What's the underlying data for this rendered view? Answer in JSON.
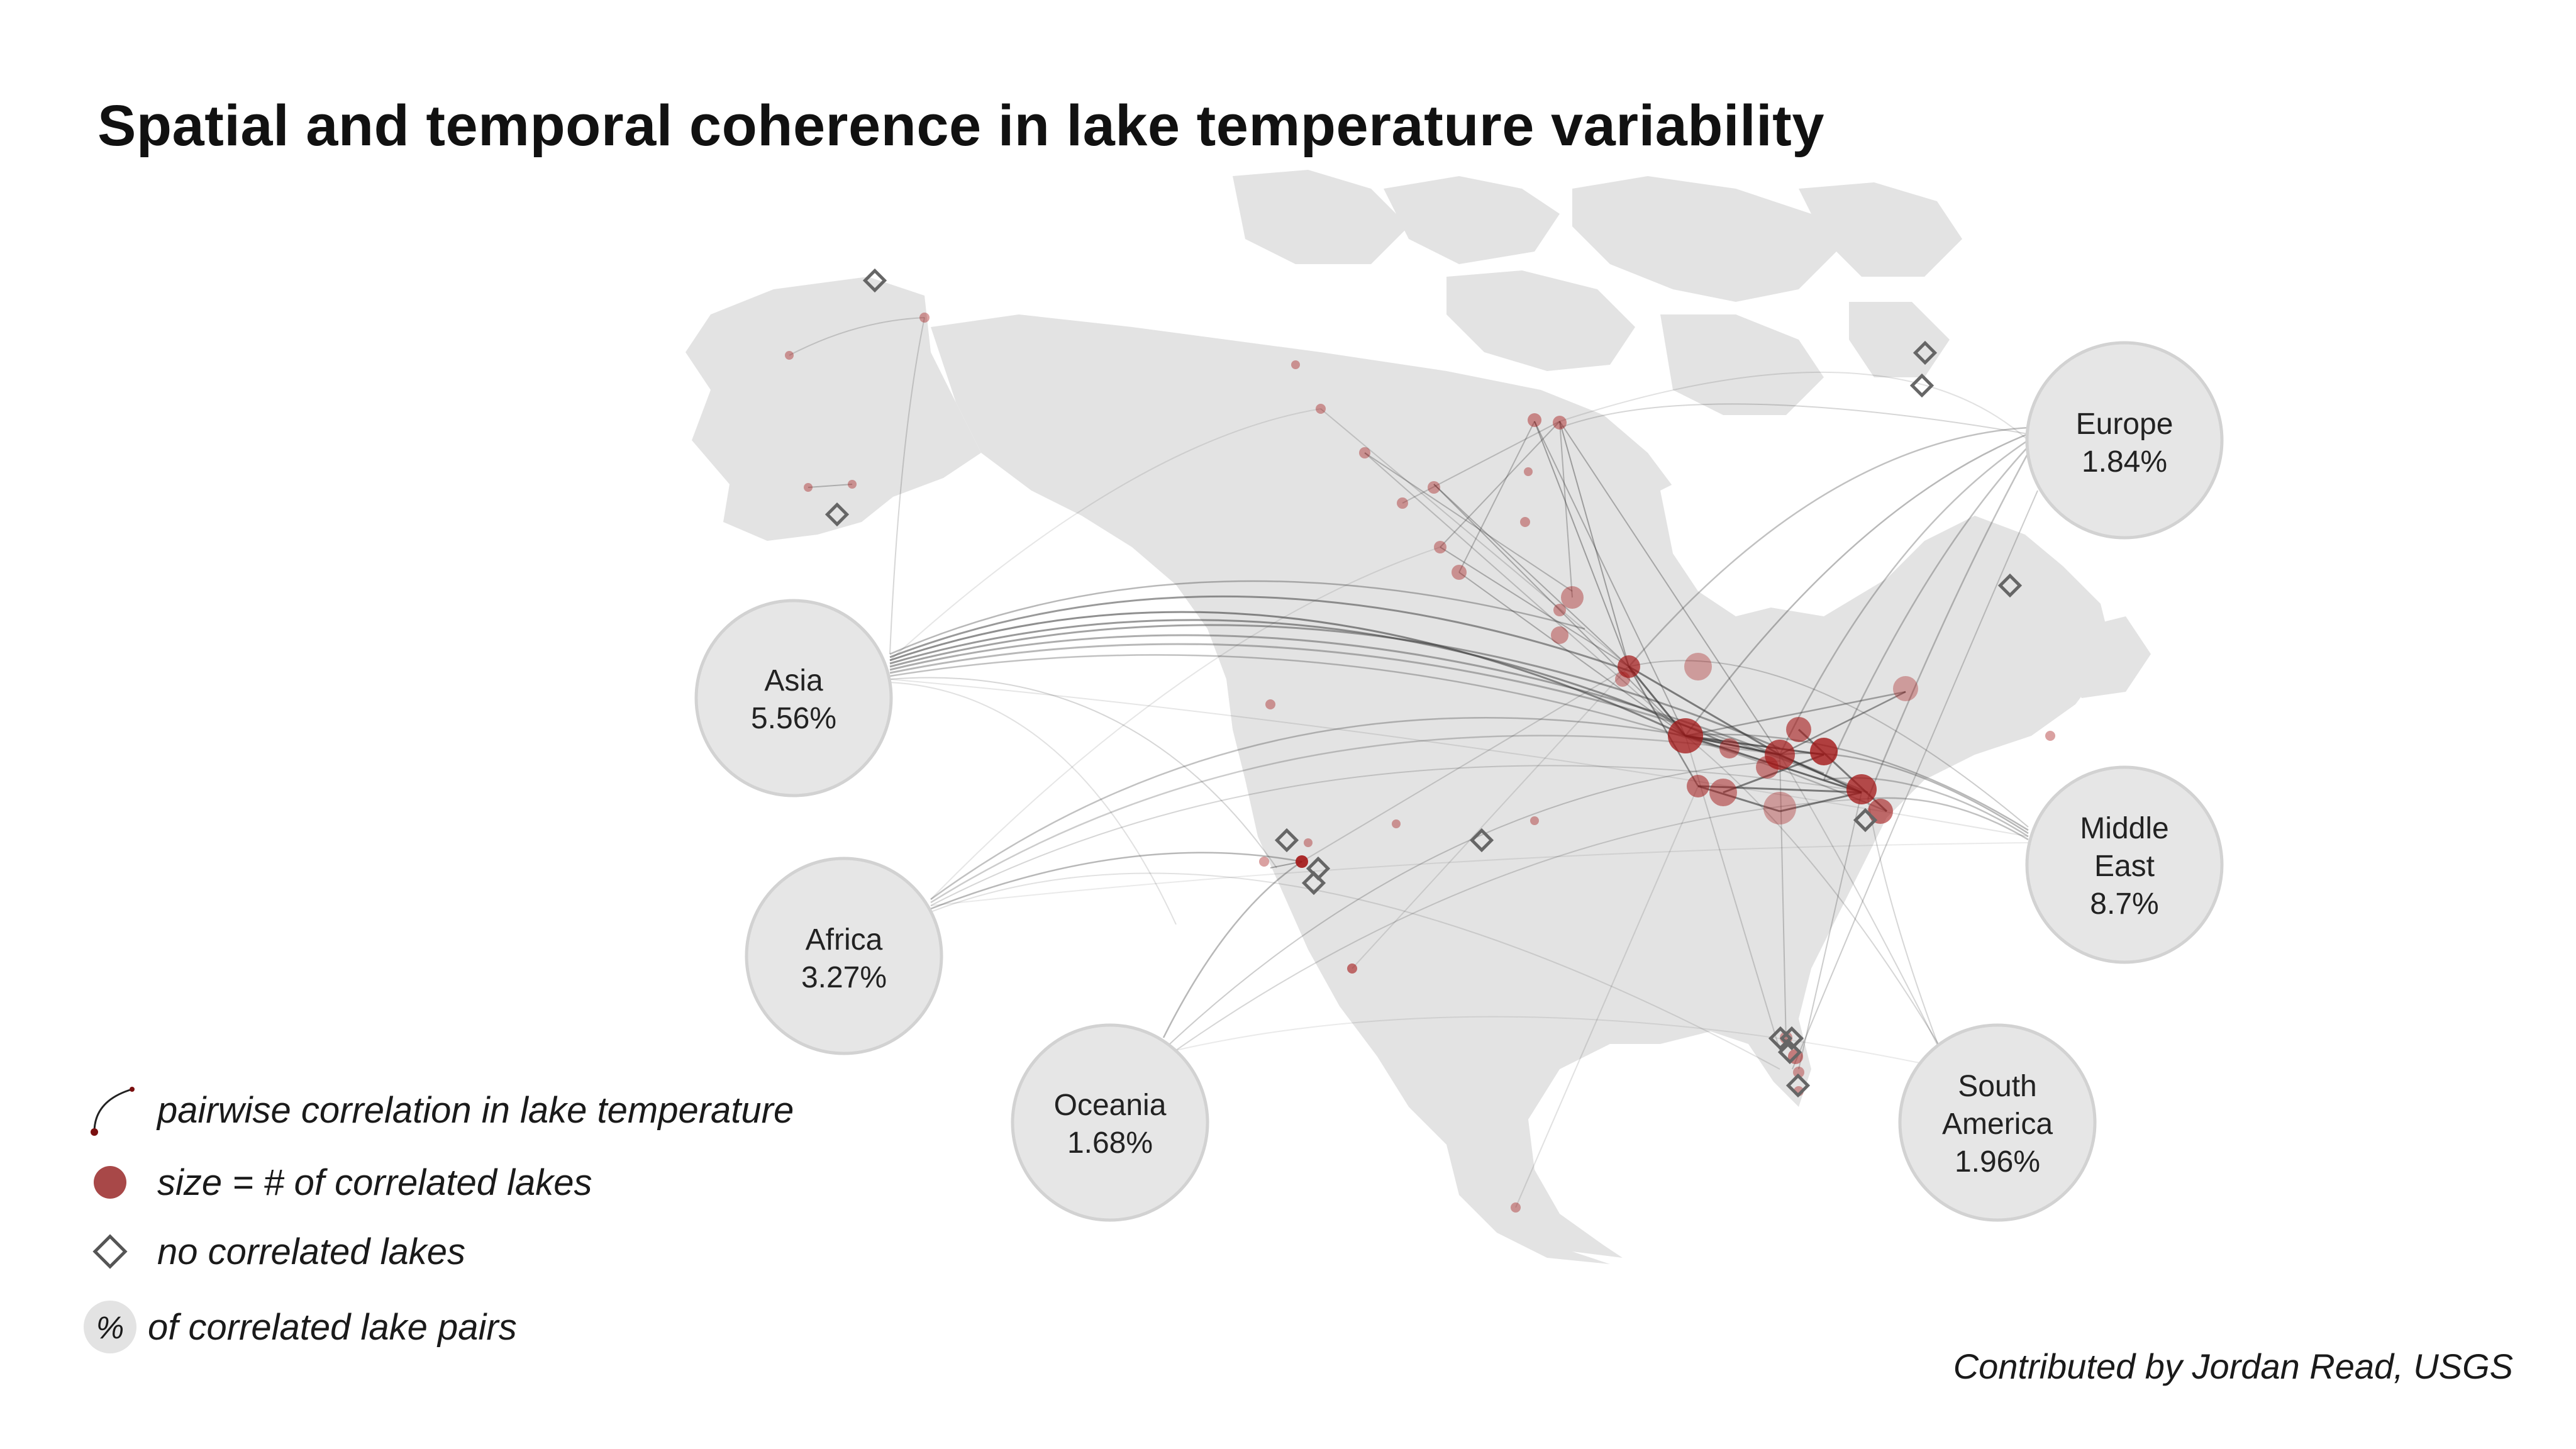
{
  "title": "Spatial and temporal coherence in lake temperature variability",
  "regions": [
    {
      "name": "Asia",
      "pct": "5.56%"
    },
    {
      "name": "Africa",
      "pct": "3.27%"
    },
    {
      "name": "Oceania",
      "pct": "1.68%"
    },
    {
      "name": "Europe",
      "pct": "1.84%"
    },
    {
      "name": "Middle East",
      "name_lines": [
        "Middle",
        "East"
      ],
      "pct": "8.7%"
    },
    {
      "name": "South America",
      "name_lines": [
        "South",
        "America"
      ],
      "pct": "1.96%"
    }
  ],
  "legend": {
    "correlation": "pairwise correlation in lake temperature",
    "size": "size = # of correlated lakes",
    "none": "no correlated lakes",
    "pct_symbol": "%",
    "pct": "of correlated lake pairs"
  },
  "credit": "Contributed by Jordan Read, USGS",
  "colors": {
    "land": "#e3e3e3",
    "circle_fill": "#e6e6e6",
    "circle_stroke": "#d2d2d2",
    "lake": "#a31515",
    "diamond": "#666666",
    "line": "#333333"
  }
}
